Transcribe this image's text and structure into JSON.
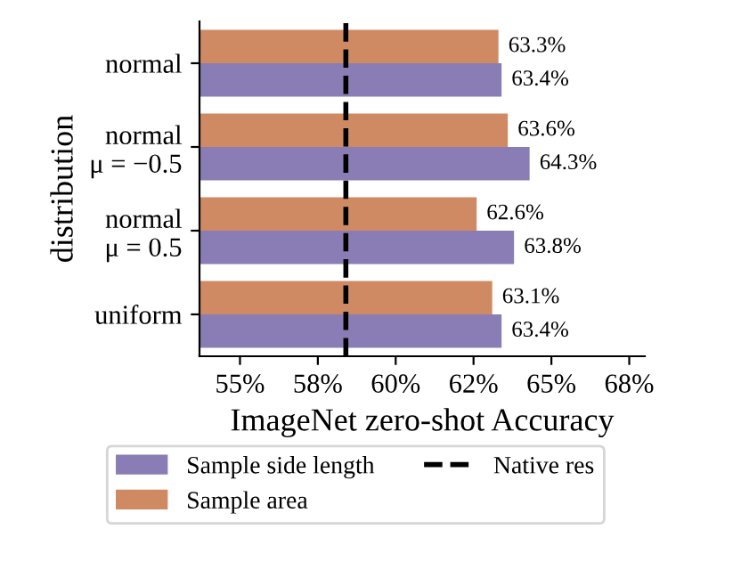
{
  "chart_data": {
    "type": "bar",
    "orientation": "horizontal",
    "categories": [
      "normal",
      "normal\nμ = −0.5",
      "normal\nμ = 0.5",
      "uniform"
    ],
    "series": [
      {
        "name": "Sample side length",
        "color": "#8a7db5",
        "values": [
          63.4,
          64.3,
          63.8,
          63.4
        ],
        "value_labels": [
          "63.4%",
          "64.3%",
          "63.8%",
          "63.4%"
        ]
      },
      {
        "name": "Sample area",
        "color": "#cf8a63",
        "values": [
          63.3,
          63.6,
          62.6,
          63.1
        ],
        "value_labels": [
          "63.3%",
          "63.6%",
          "62.6%",
          "63.1%"
        ]
      }
    ],
    "xlabel": "ImageNet zero-shot Accuracy",
    "ylabel": "distribution",
    "xlim": [
      53.7,
      68
    ],
    "xticks": [
      {
        "value": 55,
        "label": "55%"
      },
      {
        "value": 57.5,
        "label": "58%"
      },
      {
        "value": 60,
        "label": "60%"
      },
      {
        "value": 62.5,
        "label": "62%"
      },
      {
        "value": 65,
        "label": "65%"
      },
      {
        "value": 67.5,
        "label": "68%"
      }
    ],
    "ref_lines": [
      {
        "axis": "x",
        "value": 58.4,
        "label": "Native res",
        "color": "#000000",
        "line_style": "dashed"
      }
    ],
    "legend": "bottom",
    "grid": false
  }
}
